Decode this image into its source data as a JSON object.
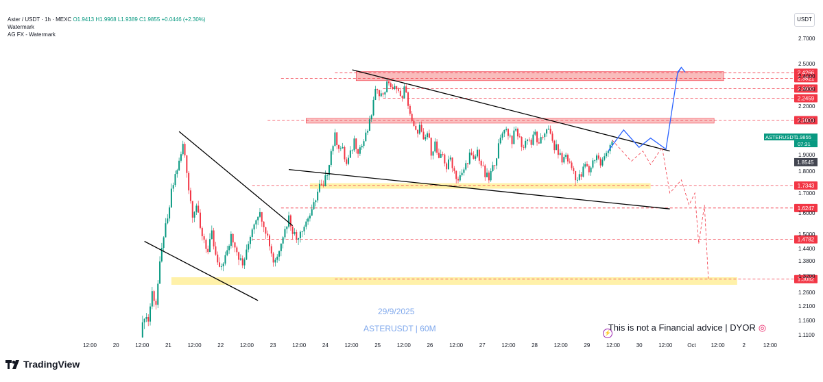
{
  "header": {
    "symbol_line": "Aster / USDT · 1h · MEXC",
    "open": "O1.9413",
    "high": "H1.9968",
    "low": "L1.9389",
    "close": "C1.9855",
    "change": "+0.0446 (+2.30%)",
    "watermark1": "Watermark",
    "watermark2": "AG FX - Watermark"
  },
  "currency_button": "USDT",
  "brand": "TradingView",
  "watermark_date": "29/9/2025",
  "watermark_symbol": "ASTERUSDT | 60M",
  "disclaimer": "This is not a Financial advice | DYOR",
  "colors": {
    "up": "#089981",
    "down": "#f23645",
    "level": "#f23645",
    "resistance_zone": "#f7a6a6",
    "support_zone": "#fff0a0",
    "projection": "#2962ff",
    "trendline": "#000000"
  },
  "chart_data": {
    "type": "candlestick",
    "symbol": "ASTERUSDT",
    "interval": "1h",
    "ylim": [
      1.05,
      2.82
    ],
    "y_ticks": [
      "2.7000",
      "2.5000",
      "2.4000",
      "2.3000",
      "2.2000",
      "2.1000",
      "2.0000",
      "1.9000",
      "1.8000",
      "1.7000",
      "1.6000",
      "1.5000",
      "1.4400",
      "1.3800",
      "1.3200",
      "1.2600",
      "1.2100",
      "1.1600",
      "1.1100"
    ],
    "x_ticks": [
      "12:00",
      "20",
      "12:00",
      "21",
      "12:00",
      "22",
      "12:00",
      "23",
      "12:00",
      "24",
      "12:00",
      "25",
      "12:00",
      "26",
      "12:00",
      "27",
      "12:00",
      "28",
      "12:00",
      "29",
      "12:00",
      "30",
      "12:00",
      "Oct",
      "12:00",
      "2",
      "12:00"
    ],
    "price_levels": [
      {
        "label": "2.4266",
        "value": 2.4266
      },
      {
        "label": "2.3821",
        "value": 2.3821
      },
      {
        "label": "2.3032",
        "value": 2.3032
      },
      {
        "label": "2.2459",
        "value": 2.2459
      },
      {
        "label": "2.1023",
        "value": 2.1023
      },
      {
        "label": "1.7343",
        "value": 1.7343
      },
      {
        "label": "1.6247",
        "value": 1.6247
      },
      {
        "label": "1.4782",
        "value": 1.4782
      },
      {
        "label": "1.3082",
        "value": 1.3082
      }
    ],
    "last_price": {
      "symbol": "ASTERUSDT",
      "value": "1.9855",
      "countdown": "07:31"
    },
    "marker_price": "1.8545",
    "close_path": [
      [
        0,
        1.1
      ],
      [
        2,
        1.18
      ],
      [
        4,
        1.16
      ],
      [
        6,
        1.26
      ],
      [
        8,
        1.22
      ],
      [
        10,
        1.36
      ],
      [
        12,
        1.5
      ],
      [
        14,
        1.56
      ],
      [
        16,
        1.7
      ],
      [
        18,
        1.78
      ],
      [
        20,
        1.85
      ],
      [
        22,
        1.95
      ],
      [
        23,
        1.9
      ],
      [
        25,
        1.72
      ],
      [
        27,
        1.6
      ],
      [
        29,
        1.64
      ],
      [
        31,
        1.52
      ],
      [
        33,
        1.48
      ],
      [
        35,
        1.42
      ],
      [
        37,
        1.5
      ],
      [
        39,
        1.4
      ],
      [
        41,
        1.34
      ],
      [
        43,
        1.38
      ],
      [
        45,
        1.42
      ],
      [
        47,
        1.5
      ],
      [
        49,
        1.46
      ],
      [
        51,
        1.4
      ],
      [
        53,
        1.36
      ],
      [
        55,
        1.42
      ],
      [
        57,
        1.5
      ],
      [
        59,
        1.56
      ],
      [
        61,
        1.6
      ],
      [
        63,
        1.58
      ],
      [
        65,
        1.52
      ],
      [
        67,
        1.46
      ],
      [
        69,
        1.38
      ],
      [
        71,
        1.4
      ],
      [
        73,
        1.48
      ],
      [
        75,
        1.52
      ],
      [
        77,
        1.58
      ],
      [
        79,
        1.52
      ],
      [
        81,
        1.48
      ],
      [
        83,
        1.52
      ],
      [
        85,
        1.54
      ],
      [
        87,
        1.58
      ],
      [
        89,
        1.6
      ],
      [
        91,
        1.68
      ],
      [
        93,
        1.73
      ],
      [
        95,
        1.72
      ],
      [
        97,
        1.8
      ],
      [
        99,
        1.92
      ],
      [
        101,
        2.0
      ],
      [
        103,
        1.95
      ],
      [
        105,
        1.92
      ],
      [
        107,
        1.84
      ],
      [
        109,
        1.9
      ],
      [
        111,
        1.98
      ],
      [
        113,
        1.93
      ],
      [
        115,
        1.95
      ],
      [
        117,
        2.0
      ],
      [
        119,
        2.08
      ],
      [
        121,
        2.22
      ],
      [
        123,
        2.32
      ],
      [
        125,
        2.26
      ],
      [
        127,
        2.3
      ],
      [
        129,
        2.36
      ],
      [
        131,
        2.28
      ],
      [
        133,
        2.33
      ],
      [
        135,
        2.24
      ],
      [
        137,
        2.3
      ],
      [
        139,
        2.22
      ],
      [
        141,
        2.08
      ],
      [
        143,
        2.02
      ],
      [
        145,
        2.06
      ],
      [
        147,
        1.96
      ],
      [
        149,
        2.02
      ],
      [
        151,
        1.92
      ],
      [
        153,
        1.96
      ],
      [
        155,
        1.86
      ],
      [
        157,
        1.9
      ],
      [
        159,
        1.82
      ],
      [
        161,
        1.88
      ],
      [
        163,
        1.8
      ],
      [
        165,
        1.76
      ],
      [
        167,
        1.78
      ],
      [
        169,
        1.84
      ],
      [
        171,
        1.9
      ],
      [
        173,
        1.86
      ],
      [
        175,
        1.92
      ],
      [
        177,
        1.84
      ],
      [
        179,
        1.78
      ],
      [
        181,
        1.76
      ],
      [
        183,
        1.82
      ],
      [
        185,
        1.9
      ],
      [
        187,
        1.98
      ],
      [
        189,
        2.06
      ],
      [
        191,
        2.02
      ],
      [
        193,
        1.98
      ],
      [
        195,
        2.04
      ],
      [
        197,
        1.98
      ],
      [
        199,
        1.94
      ],
      [
        201,
        2.0
      ],
      [
        203,
        1.96
      ],
      [
        205,
        2.02
      ],
      [
        207,
        1.94
      ],
      [
        209,
        2.0
      ],
      [
        211,
        2.06
      ],
      [
        213,
        2.0
      ],
      [
        215,
        1.94
      ],
      [
        217,
        1.92
      ],
      [
        219,
        1.86
      ],
      [
        221,
        1.9
      ],
      [
        223,
        1.84
      ],
      [
        225,
        1.8
      ],
      [
        227,
        1.76
      ],
      [
        229,
        1.78
      ],
      [
        231,
        1.84
      ],
      [
        233,
        1.8
      ],
      [
        235,
        1.86
      ],
      [
        237,
        1.9
      ],
      [
        239,
        1.84
      ],
      [
        241,
        1.88
      ],
      [
        243,
        1.94
      ],
      [
        245,
        1.98
      ]
    ]
  }
}
